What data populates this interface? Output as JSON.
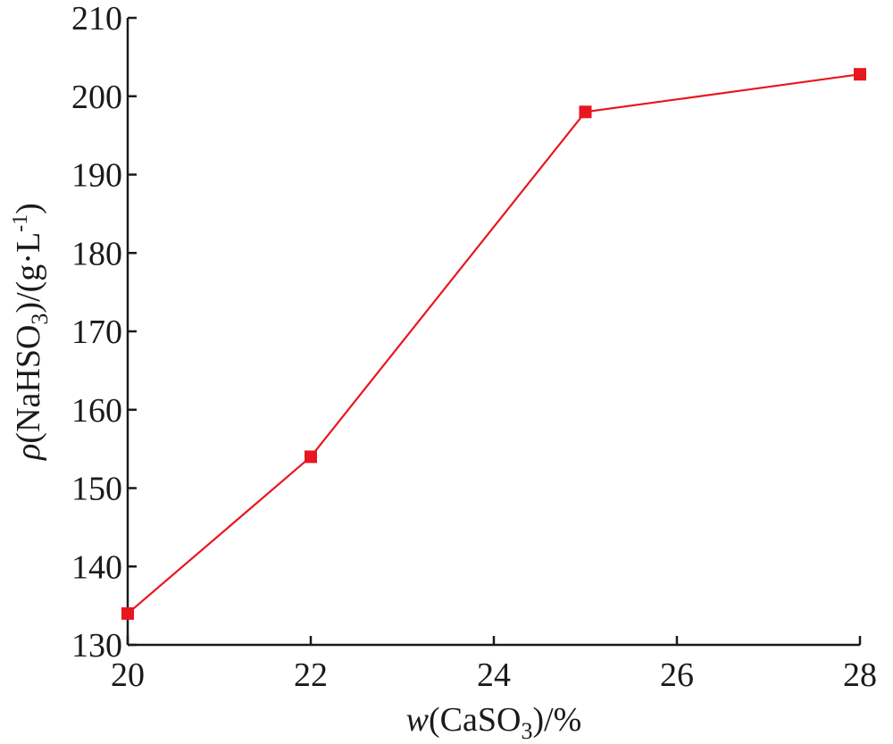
{
  "chart_data": {
    "type": "line",
    "x_title": {
      "prefix": "w",
      "open": "(CaSO",
      "subscript": "3",
      "close": ")/%"
    },
    "y_title": {
      "prefix": "ρ",
      "open": "(NaHSO",
      "subscript": "3",
      "mid": ")/(g·L",
      "superscript": "-1",
      "close": ")"
    },
    "xlim": [
      20,
      28
    ],
    "ylim": [
      130,
      210
    ],
    "x_ticks": [
      20,
      22,
      24,
      26,
      28
    ],
    "y_ticks": [
      130,
      140,
      150,
      160,
      170,
      180,
      190,
      200,
      210
    ],
    "grid": false,
    "series": [
      {
        "color": "#e8161e",
        "marker": "square",
        "points": [
          {
            "x": 20,
            "y": 134
          },
          {
            "x": 22,
            "y": 154
          },
          {
            "x": 25,
            "y": 198
          },
          {
            "x": 28,
            "y": 202.8
          }
        ]
      }
    ]
  }
}
